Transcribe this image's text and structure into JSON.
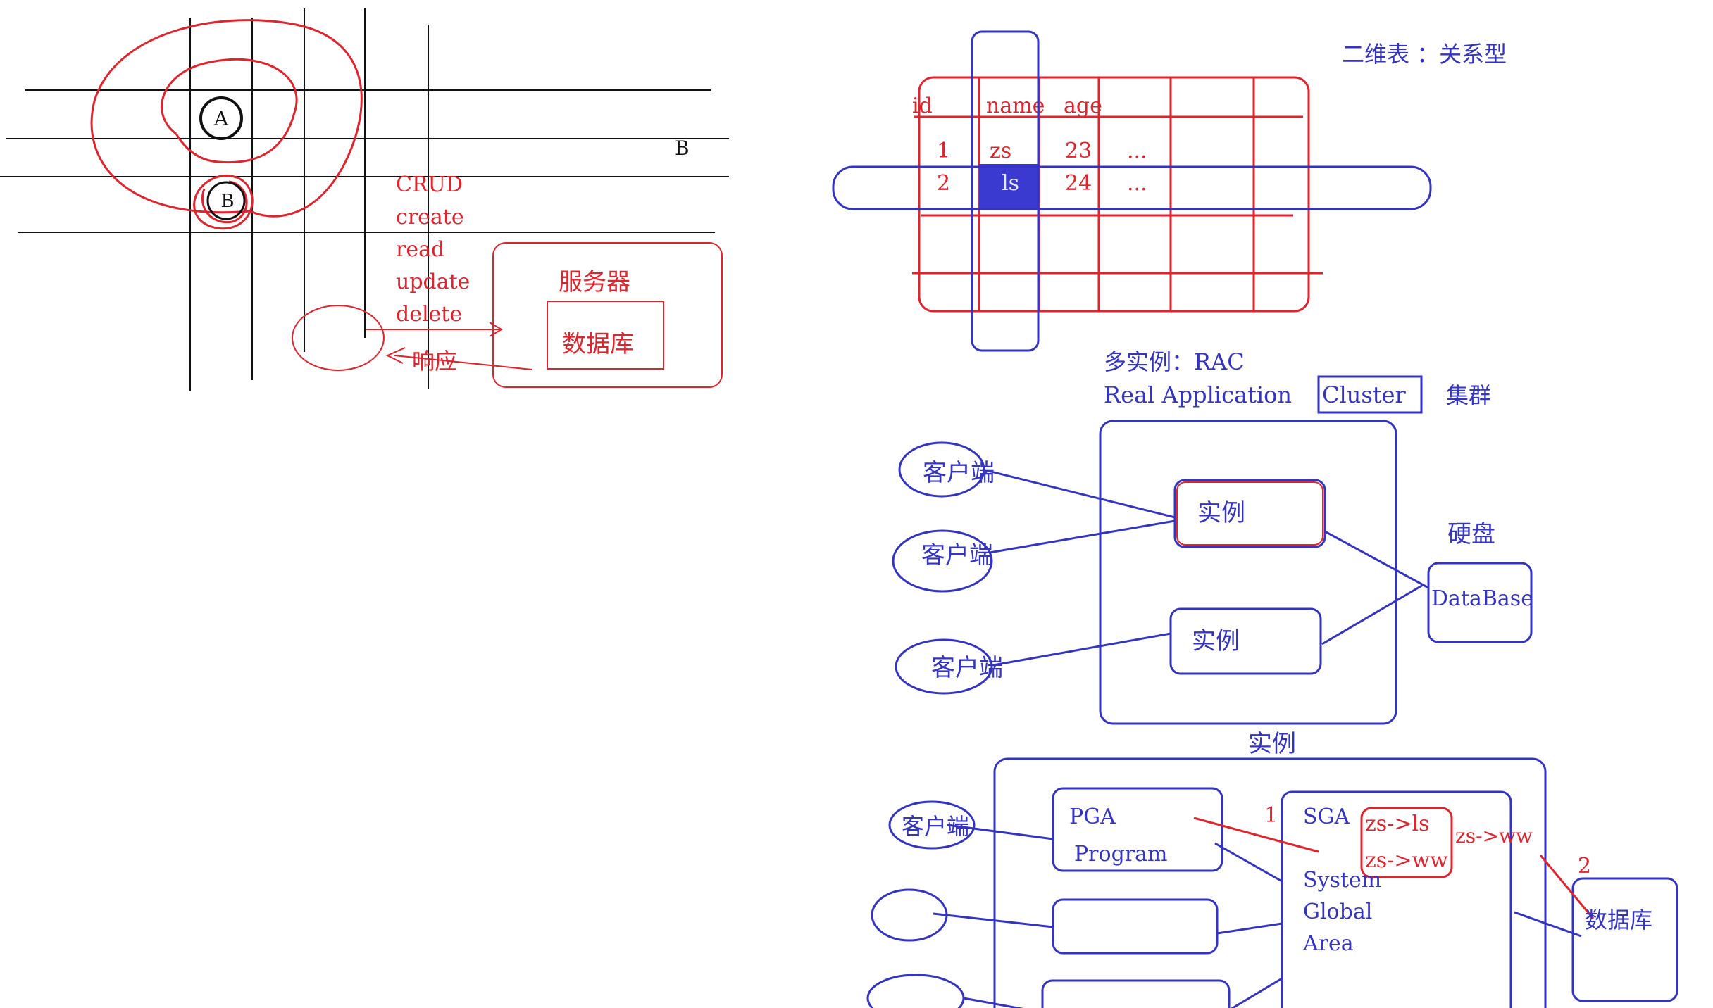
{
  "colors": {
    "red": "#e0232c",
    "blue": "#3333c4",
    "black": "#111111",
    "highlight": "#3a3ad1"
  },
  "left": {
    "circle_a": "A",
    "circle_b": "B",
    "right_b": "B",
    "crud": [
      "CRUD",
      "create",
      "read",
      "update",
      "delete"
    ],
    "server": "服务器",
    "database": "数据库",
    "response": "响应"
  },
  "table": {
    "caption": "二维表 ：关系型",
    "headers": [
      "id",
      "name",
      "age"
    ],
    "rows": [
      [
        "1",
        "zs",
        "23",
        "..."
      ],
      [
        "2",
        "ls",
        "24",
        "..."
      ]
    ]
  },
  "rac": {
    "title": "多实例：RAC",
    "subtitle_prefix": "Real Application",
    "cluster": "Cluster",
    "cluster_cn": "集群",
    "clients": [
      "客户端",
      "客户端",
      "客户端"
    ],
    "instances": [
      "实例",
      "实例"
    ],
    "disk": "硬盘",
    "database": "DataBase"
  },
  "instance": {
    "title": "实例",
    "client": "客户端",
    "pga": [
      "PGA",
      "Program"
    ],
    "sga": [
      "SGA",
      "System",
      "Global",
      "Area"
    ],
    "change_1": "zs->ls",
    "change_2": "zs->ww",
    "change_out": "zs->ww",
    "step_1": "1",
    "step_2": "2",
    "database": "数据库"
  }
}
